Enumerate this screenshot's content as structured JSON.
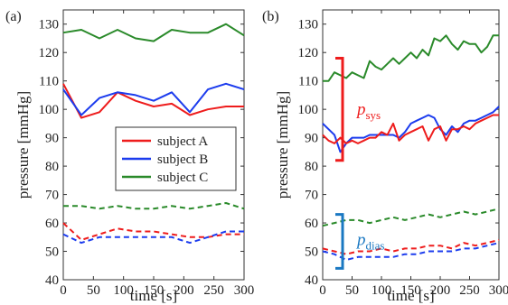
{
  "chart_data": [
    {
      "type": "line",
      "panel_label": "(a)",
      "xlabel": "time [s]",
      "ylabel": "pressure [mmHg]",
      "xlim": [
        0,
        300
      ],
      "ylim": [
        40,
        135
      ],
      "xticks": [
        "0",
        "50",
        "100",
        "150",
        "200",
        "250",
        "300"
      ],
      "yticks": [
        "40",
        "50",
        "60",
        "70",
        "80",
        "90",
        "100",
        "110",
        "120",
        "130"
      ],
      "grid": false,
      "legend": {
        "placement": "center",
        "entries": [
          {
            "label": "subject A",
            "color": "#ee1c1c"
          },
          {
            "label": "subject B",
            "color": "#1c3cee"
          },
          {
            "label": "subject C",
            "color": "#2a8a2a"
          }
        ]
      },
      "series": [
        {
          "name": "subject A",
          "kind": "systolic",
          "style": "solid",
          "color": "#ee1c1c",
          "x": [
            0,
            30,
            60,
            90,
            120,
            150,
            180,
            210,
            240,
            270,
            300
          ],
          "y": [
            109,
            97,
            99,
            106,
            103,
            101,
            102,
            98,
            100,
            101,
            101
          ]
        },
        {
          "name": "subject B",
          "kind": "systolic",
          "style": "solid",
          "color": "#1c3cee",
          "x": [
            0,
            30,
            60,
            90,
            120,
            150,
            180,
            210,
            240,
            270,
            300
          ],
          "y": [
            107,
            98,
            104,
            106,
            105,
            103,
            106,
            99,
            107,
            109,
            107
          ]
        },
        {
          "name": "subject C",
          "kind": "systolic",
          "style": "solid",
          "color": "#2a8a2a",
          "x": [
            0,
            30,
            60,
            90,
            120,
            150,
            180,
            210,
            240,
            270,
            300
          ],
          "y": [
            127,
            128,
            125,
            128,
            125,
            124,
            128,
            127,
            127,
            130,
            126
          ]
        },
        {
          "name": "subject A",
          "kind": "diastolic",
          "style": "dashed",
          "color": "#ee1c1c",
          "x": [
            0,
            30,
            60,
            90,
            120,
            150,
            180,
            210,
            240,
            270,
            300
          ],
          "y": [
            60,
            54,
            56,
            58,
            57,
            57,
            56,
            55,
            55,
            56,
            56
          ]
        },
        {
          "name": "subject B",
          "kind": "diastolic",
          "style": "dashed",
          "color": "#1c3cee",
          "x": [
            0,
            30,
            60,
            90,
            120,
            150,
            180,
            210,
            240,
            270,
            300
          ],
          "y": [
            56,
            53,
            55,
            55,
            55,
            55,
            55,
            53,
            55,
            57,
            57
          ]
        },
        {
          "name": "subject C",
          "kind": "diastolic",
          "style": "dashed",
          "color": "#2a8a2a",
          "x": [
            0,
            30,
            60,
            90,
            120,
            150,
            180,
            210,
            240,
            270,
            300
          ],
          "y": [
            66,
            66,
            65,
            66,
            65,
            65,
            66,
            65,
            66,
            67,
            65
          ]
        }
      ]
    },
    {
      "type": "line",
      "panel_label": "(b)",
      "xlabel": "time [s]",
      "ylabel": "pressure [mmHg]",
      "xlim": [
        0,
        300
      ],
      "ylim": [
        40,
        135
      ],
      "xticks": [
        "0",
        "50",
        "100",
        "150",
        "200",
        "250",
        "300"
      ],
      "yticks": [
        "40",
        "50",
        "60",
        "70",
        "80",
        "90",
        "100",
        "110",
        "120",
        "130"
      ],
      "grid": false,
      "annotations": [
        {
          "text": "p",
          "subscript": "sys",
          "color": "#ee1c1c",
          "bracket_range": [
            82,
            118
          ]
        },
        {
          "text": "p",
          "subscript": "dias",
          "color": "#1a78c2",
          "bracket_range": [
            44,
            63
          ]
        }
      ],
      "series": [
        {
          "name": "",
          "kind": "systolic",
          "style": "solid",
          "color": "#2a8a2a",
          "x": [
            0,
            10,
            20,
            30,
            40,
            50,
            60,
            70,
            80,
            90,
            100,
            110,
            120,
            130,
            140,
            150,
            160,
            170,
            180,
            190,
            200,
            210,
            220,
            230,
            240,
            250,
            260,
            270,
            280,
            290,
            300
          ],
          "y": [
            110,
            110,
            113,
            112,
            111,
            113,
            112,
            111,
            117,
            115,
            114,
            116,
            118,
            116,
            118,
            120,
            118,
            121,
            119,
            125,
            124,
            126,
            123,
            121,
            124,
            123,
            123,
            120,
            122,
            126,
            126
          ]
        },
        {
          "name": "",
          "kind": "systolic",
          "style": "solid",
          "color": "#1c3cee",
          "x": [
            0,
            10,
            20,
            30,
            40,
            50,
            60,
            70,
            80,
            90,
            100,
            110,
            120,
            130,
            140,
            150,
            160,
            170,
            180,
            190,
            200,
            210,
            220,
            230,
            240,
            250,
            260,
            270,
            280,
            290,
            300
          ],
          "y": [
            95,
            93,
            91,
            85,
            88,
            90,
            90,
            90,
            91,
            91,
            91,
            91,
            91,
            90,
            92,
            95,
            96,
            97,
            98,
            97,
            93,
            91,
            94,
            92,
            95,
            96,
            96,
            97,
            98,
            99,
            101
          ]
        },
        {
          "name": "",
          "kind": "systolic",
          "style": "solid",
          "color": "#ee1c1c",
          "x": [
            0,
            10,
            20,
            30,
            40,
            50,
            60,
            70,
            80,
            90,
            100,
            110,
            120,
            130,
            140,
            150,
            160,
            170,
            180,
            190,
            200,
            210,
            220,
            230,
            240,
            250,
            260,
            270,
            280,
            290,
            300
          ],
          "y": [
            91,
            89,
            88,
            90,
            88,
            89,
            88,
            89,
            90,
            90,
            92,
            91,
            95,
            89,
            91,
            92,
            93,
            94,
            89,
            93,
            94,
            89,
            93,
            93,
            94,
            93,
            95,
            96,
            97,
            98,
            98
          ]
        },
        {
          "name": "",
          "kind": "diastolic",
          "style": "dashed",
          "color": "#2a8a2a",
          "x": [
            0,
            20,
            40,
            60,
            80,
            100,
            120,
            140,
            160,
            180,
            200,
            220,
            240,
            260,
            280,
            300
          ],
          "y": [
            59,
            60,
            61,
            61,
            60,
            61,
            62,
            61,
            62,
            63,
            62,
            63,
            64,
            63,
            64,
            65
          ]
        },
        {
          "name": "",
          "kind": "diastolic",
          "style": "dashed",
          "color": "#ee1c1c",
          "x": [
            0,
            20,
            40,
            60,
            80,
            100,
            120,
            140,
            160,
            180,
            200,
            220,
            240,
            260,
            280,
            300
          ],
          "y": [
            51,
            50,
            49,
            50,
            50,
            51,
            50,
            51,
            51,
            52,
            52,
            51,
            53,
            52,
            53,
            54
          ]
        },
        {
          "name": "",
          "kind": "diastolic",
          "style": "dashed",
          "color": "#1c3cee",
          "x": [
            0,
            20,
            40,
            60,
            80,
            100,
            120,
            140,
            160,
            180,
            200,
            220,
            240,
            260,
            280,
            300
          ],
          "y": [
            50,
            49,
            47,
            48,
            48,
            48,
            48,
            49,
            49,
            50,
            50,
            50,
            51,
            51,
            52,
            53
          ]
        }
      ]
    }
  ]
}
